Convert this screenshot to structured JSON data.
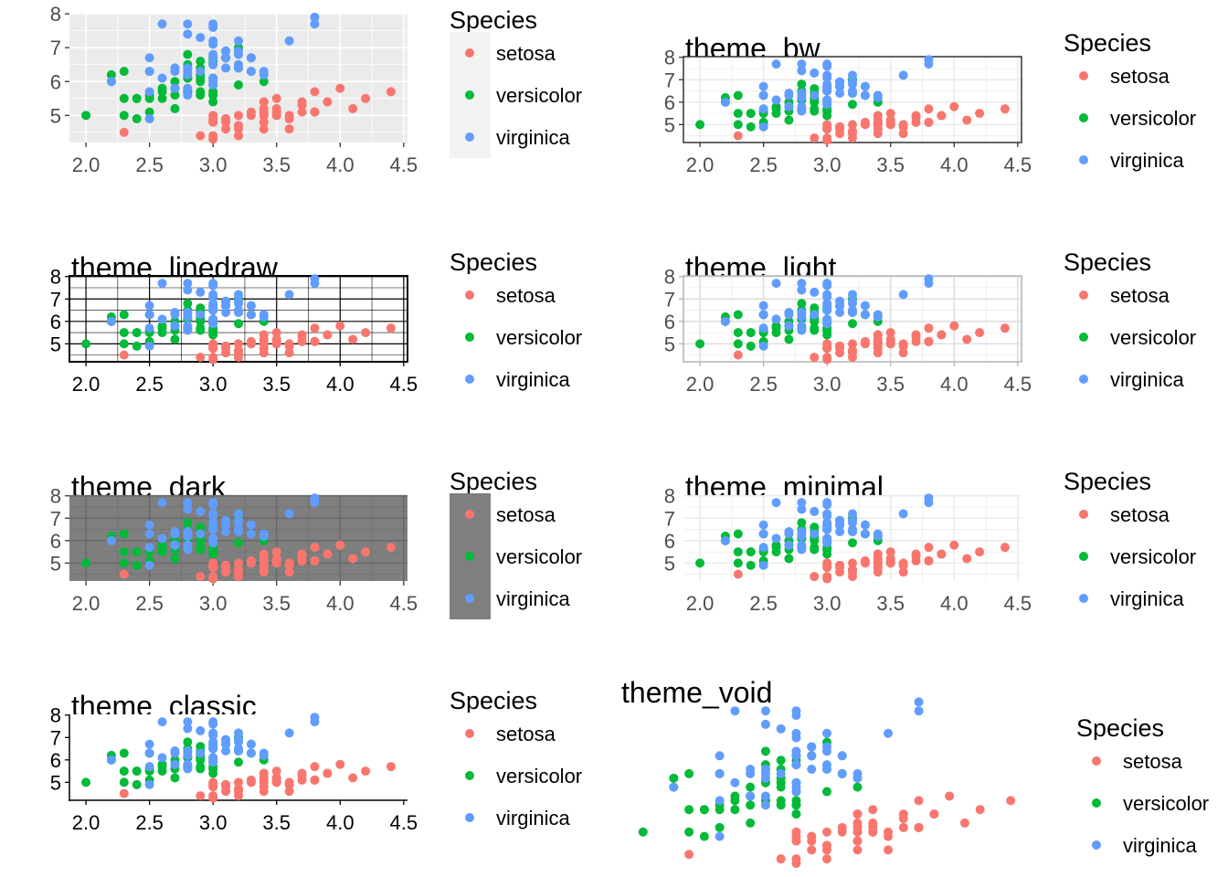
{
  "legend_title": "Species",
  "species": [
    "setosa",
    "versicolor",
    "virginica"
  ],
  "species_colors": {
    "setosa": "#F8766D",
    "versicolor": "#00BA38",
    "virginica": "#619CFF"
  },
  "chart_data": [
    {
      "type": "scatter",
      "title": "",
      "theme": "theme_gray",
      "xlim": [
        1.9,
        4.5
      ],
      "ylim": [
        4.2,
        8.0
      ],
      "x_ticks": [
        "2.0",
        "2.5",
        "3.0",
        "3.5",
        "4.0",
        "4.5"
      ],
      "y_ticks": [
        "5",
        "6",
        "7",
        "8"
      ],
      "grid": true,
      "panel_background": "#EBEBEB",
      "legend_key_background": "#F2F2F2"
    },
    {
      "type": "scatter",
      "title": "theme_bw",
      "theme": "theme_bw",
      "xlim": [
        1.9,
        4.5
      ],
      "ylim": [
        4.2,
        8.0
      ],
      "x_ticks": [
        "2.0",
        "2.5",
        "3.0",
        "3.5",
        "4.0",
        "4.5"
      ],
      "y_ticks": [
        "5",
        "6",
        "7",
        "8"
      ],
      "grid": true,
      "panel_background": "#FFFFFF",
      "legend_key_background": "#FFFFFF"
    },
    {
      "type": "scatter",
      "title": "theme_linedraw",
      "theme": "theme_linedraw",
      "xlim": [
        1.9,
        4.5
      ],
      "ylim": [
        4.2,
        8.0
      ],
      "x_ticks": [
        "2.0",
        "2.5",
        "3.0",
        "3.5",
        "4.0",
        "4.5"
      ],
      "y_ticks": [
        "5",
        "6",
        "7",
        "8"
      ],
      "grid": true,
      "panel_background": "#FFFFFF",
      "legend_key_background": "#FFFFFF"
    },
    {
      "type": "scatter",
      "title": "theme_light",
      "theme": "theme_light",
      "xlim": [
        1.9,
        4.5
      ],
      "ylim": [
        4.2,
        8.0
      ],
      "x_ticks": [
        "2.0",
        "2.5",
        "3.0",
        "3.5",
        "4.0",
        "4.5"
      ],
      "y_ticks": [
        "5",
        "6",
        "7",
        "8"
      ],
      "grid": true,
      "panel_background": "#FFFFFF",
      "legend_key_background": "#FFFFFF"
    },
    {
      "type": "scatter",
      "title": "theme_dark",
      "theme": "theme_dark",
      "xlim": [
        1.9,
        4.5
      ],
      "ylim": [
        4.2,
        8.0
      ],
      "x_ticks": [
        "2.0",
        "2.5",
        "3.0",
        "3.5",
        "4.0",
        "4.5"
      ],
      "y_ticks": [
        "5",
        "6",
        "7",
        "8"
      ],
      "grid": true,
      "panel_background": "#7F7F7F",
      "legend_key_background": "#7F7F7F"
    },
    {
      "type": "scatter",
      "title": "theme_minimal",
      "theme": "theme_minimal",
      "xlim": [
        1.9,
        4.5
      ],
      "ylim": [
        4.2,
        8.0
      ],
      "x_ticks": [
        "2.0",
        "2.5",
        "3.0",
        "3.5",
        "4.0",
        "4.5"
      ],
      "y_ticks": [
        "5",
        "6",
        "7",
        "8"
      ],
      "grid": true,
      "panel_background": "#FFFFFF",
      "legend_key_background": "#FFFFFF"
    },
    {
      "type": "scatter",
      "title": "theme_classic",
      "theme": "theme_classic",
      "xlim": [
        1.9,
        4.5
      ],
      "ylim": [
        4.2,
        8.0
      ],
      "x_ticks": [
        "2.0",
        "2.5",
        "3.0",
        "3.5",
        "4.0",
        "4.5"
      ],
      "y_ticks": [
        "5",
        "6",
        "7",
        "8"
      ],
      "grid": false,
      "panel_background": "#FFFFFF",
      "legend_key_background": "#FFFFFF"
    },
    {
      "type": "scatter",
      "title": "theme_void",
      "theme": "theme_void",
      "xlim": [
        1.9,
        4.5
      ],
      "ylim": [
        4.2,
        8.0
      ],
      "x_ticks": [],
      "y_ticks": [],
      "grid": false,
      "panel_background": "#FFFFFF",
      "legend_key_background": "#FFFFFF"
    }
  ],
  "points": {
    "setosa": [
      [
        3.5,
        5.1
      ],
      [
        3.0,
        4.9
      ],
      [
        3.2,
        4.7
      ],
      [
        3.1,
        4.6
      ],
      [
        3.6,
        5.0
      ],
      [
        3.9,
        5.4
      ],
      [
        3.4,
        4.6
      ],
      [
        3.4,
        5.0
      ],
      [
        2.9,
        4.4
      ],
      [
        3.1,
        4.9
      ],
      [
        3.7,
        5.4
      ],
      [
        3.4,
        4.8
      ],
      [
        3.0,
        4.8
      ],
      [
        3.0,
        4.3
      ],
      [
        4.0,
        5.8
      ],
      [
        4.4,
        5.7
      ],
      [
        3.9,
        5.4
      ],
      [
        3.5,
        5.1
      ],
      [
        3.8,
        5.7
      ],
      [
        3.8,
        5.1
      ],
      [
        3.4,
        5.4
      ],
      [
        3.7,
        5.1
      ],
      [
        3.6,
        4.6
      ],
      [
        3.3,
        5.1
      ],
      [
        3.4,
        4.8
      ],
      [
        3.0,
        5.0
      ],
      [
        3.4,
        5.0
      ],
      [
        3.5,
        5.2
      ],
      [
        3.4,
        5.2
      ],
      [
        3.2,
        4.7
      ],
      [
        3.1,
        4.8
      ],
      [
        3.4,
        5.4
      ],
      [
        4.1,
        5.2
      ],
      [
        4.2,
        5.5
      ],
      [
        3.1,
        4.9
      ],
      [
        3.2,
        5.0
      ],
      [
        3.5,
        5.5
      ],
      [
        3.6,
        4.9
      ],
      [
        3.0,
        4.4
      ],
      [
        3.4,
        5.1
      ],
      [
        3.5,
        5.0
      ],
      [
        2.3,
        4.5
      ],
      [
        3.2,
        4.4
      ],
      [
        3.5,
        5.0
      ],
      [
        3.8,
        5.1
      ],
      [
        3.0,
        4.8
      ],
      [
        3.8,
        5.1
      ],
      [
        3.2,
        4.6
      ],
      [
        3.7,
        5.3
      ],
      [
        3.3,
        5.0
      ]
    ],
    "versicolor": [
      [
        3.2,
        7.0
      ],
      [
        3.2,
        6.4
      ],
      [
        3.1,
        6.9
      ],
      [
        2.3,
        5.5
      ],
      [
        2.8,
        6.5
      ],
      [
        2.8,
        5.7
      ],
      [
        3.3,
        6.3
      ],
      [
        2.4,
        4.9
      ],
      [
        2.9,
        6.6
      ],
      [
        2.7,
        5.2
      ],
      [
        2.0,
        5.0
      ],
      [
        3.0,
        5.9
      ],
      [
        2.2,
        6.0
      ],
      [
        2.9,
        6.1
      ],
      [
        2.9,
        5.6
      ],
      [
        3.1,
        6.7
      ],
      [
        3.0,
        5.6
      ],
      [
        2.7,
        5.8
      ],
      [
        2.2,
        6.2
      ],
      [
        2.5,
        5.6
      ],
      [
        3.2,
        5.9
      ],
      [
        2.8,
        6.1
      ],
      [
        2.5,
        6.3
      ],
      [
        2.8,
        6.1
      ],
      [
        2.9,
        6.4
      ],
      [
        3.0,
        6.6
      ],
      [
        2.8,
        6.8
      ],
      [
        3.0,
        6.7
      ],
      [
        2.9,
        6.0
      ],
      [
        2.6,
        5.7
      ],
      [
        2.4,
        5.5
      ],
      [
        2.4,
        5.5
      ],
      [
        2.7,
        5.8
      ],
      [
        2.7,
        6.0
      ],
      [
        3.0,
        5.4
      ],
      [
        3.4,
        6.0
      ],
      [
        3.1,
        6.7
      ],
      [
        2.3,
        6.3
      ],
      [
        3.0,
        5.6
      ],
      [
        2.5,
        5.5
      ],
      [
        2.6,
        5.5
      ],
      [
        3.0,
        6.1
      ],
      [
        2.6,
        5.8
      ],
      [
        2.3,
        5.0
      ],
      [
        2.7,
        5.6
      ],
      [
        3.0,
        5.7
      ],
      [
        2.9,
        5.7
      ],
      [
        2.9,
        6.2
      ],
      [
        2.5,
        5.1
      ],
      [
        2.8,
        5.7
      ]
    ],
    "virginica": [
      [
        3.3,
        6.3
      ],
      [
        2.7,
        5.8
      ],
      [
        3.0,
        7.1
      ],
      [
        2.9,
        6.3
      ],
      [
        3.0,
        6.5
      ],
      [
        3.0,
        7.6
      ],
      [
        2.5,
        4.9
      ],
      [
        2.9,
        7.3
      ],
      [
        2.5,
        6.7
      ],
      [
        3.6,
        7.2
      ],
      [
        3.2,
        6.5
      ],
      [
        2.7,
        6.4
      ],
      [
        3.0,
        6.8
      ],
      [
        2.5,
        5.7
      ],
      [
        2.8,
        5.8
      ],
      [
        3.2,
        6.4
      ],
      [
        3.0,
        6.5
      ],
      [
        3.8,
        7.7
      ],
      [
        2.6,
        7.7
      ],
      [
        2.2,
        6.0
      ],
      [
        3.2,
        6.9
      ],
      [
        2.8,
        5.6
      ],
      [
        2.8,
        7.7
      ],
      [
        2.7,
        6.3
      ],
      [
        3.3,
        6.7
      ],
      [
        3.2,
        7.2
      ],
      [
        2.8,
        6.2
      ],
      [
        3.0,
        6.1
      ],
      [
        2.8,
        6.4
      ],
      [
        3.0,
        7.2
      ],
      [
        2.8,
        7.4
      ],
      [
        3.8,
        7.9
      ],
      [
        2.8,
        6.4
      ],
      [
        2.8,
        6.3
      ],
      [
        2.6,
        6.1
      ],
      [
        3.0,
        7.7
      ],
      [
        3.4,
        6.3
      ],
      [
        3.1,
        6.4
      ],
      [
        3.0,
        6.0
      ],
      [
        3.1,
        6.9
      ],
      [
        3.1,
        6.7
      ],
      [
        3.1,
        6.9
      ],
      [
        2.7,
        5.8
      ],
      [
        3.2,
        6.8
      ],
      [
        3.3,
        6.7
      ],
      [
        3.0,
        6.7
      ],
      [
        2.5,
        6.3
      ],
      [
        3.0,
        6.5
      ],
      [
        3.4,
        6.2
      ],
      [
        3.0,
        5.9
      ]
    ]
  }
}
